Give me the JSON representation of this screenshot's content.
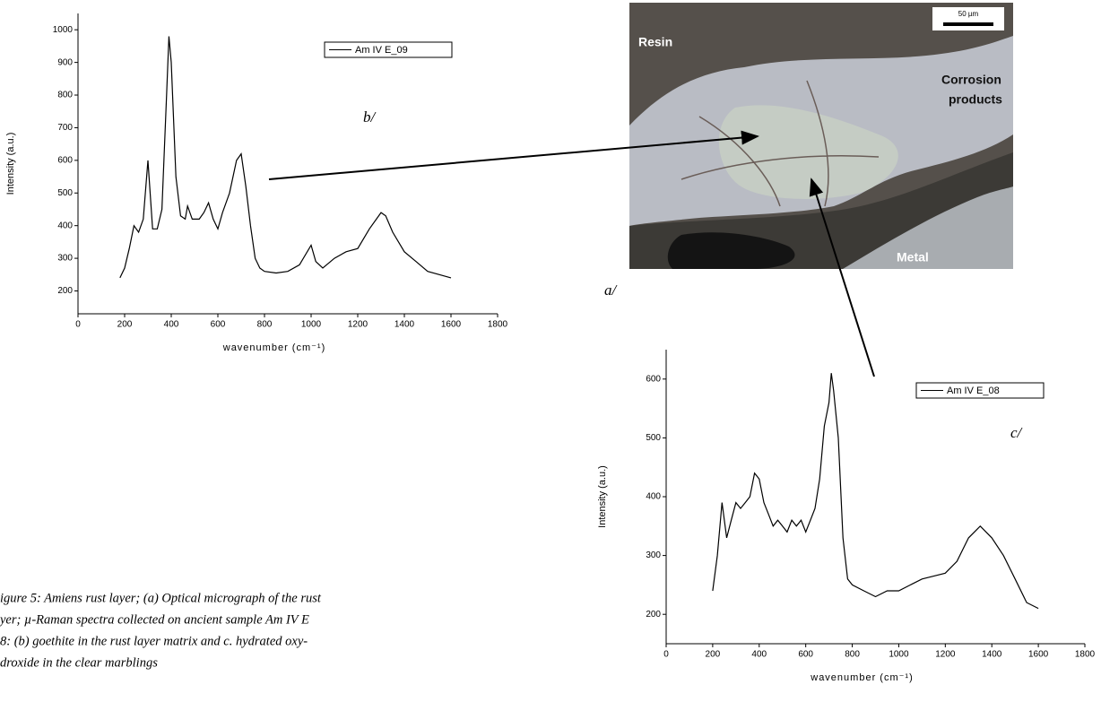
{
  "chart_data": [
    {
      "type": "line",
      "x_label": "wavenumber (cm⁻¹)",
      "y_label": "Intensity (a.u.)",
      "x": [
        180,
        200,
        220,
        240,
        260,
        280,
        300,
        320,
        340,
        360,
        380,
        390,
        400,
        420,
        440,
        460,
        470,
        490,
        520,
        540,
        560,
        580,
        600,
        620,
        650,
        680,
        700,
        720,
        740,
        760,
        780,
        800,
        850,
        900,
        950,
        1000,
        1020,
        1050,
        1100,
        1150,
        1200,
        1250,
        1300,
        1320,
        1350,
        1400,
        1450,
        1500,
        1550,
        1600
      ],
      "series": [
        {
          "name": "Am IV E_09",
          "color": "#000000",
          "values": [
            240,
            270,
            330,
            400,
            380,
            420,
            600,
            390,
            390,
            450,
            800,
            980,
            900,
            550,
            430,
            420,
            460,
            420,
            420,
            440,
            470,
            420,
            390,
            440,
            500,
            600,
            620,
            520,
            400,
            300,
            270,
            260,
            255,
            260,
            280,
            340,
            290,
            270,
            300,
            320,
            330,
            390,
            440,
            430,
            380,
            320,
            290,
            260,
            250,
            240
          ]
        }
      ],
      "xlim": [
        0,
        1800
      ],
      "xticks": [
        0,
        200,
        400,
        600,
        800,
        1000,
        1200,
        1400,
        1600,
        1800
      ],
      "ylim": [
        130,
        1050
      ],
      "yticks": [
        200,
        300,
        400,
        500,
        600,
        700,
        800,
        900,
        1000
      ]
    },
    {
      "type": "line",
      "x_label": "wavenumber (cm⁻¹)",
      "y_label": "Intensity (a.u.)",
      "x": [
        200,
        220,
        240,
        260,
        280,
        300,
        320,
        340,
        360,
        380,
        400,
        420,
        440,
        460,
        480,
        500,
        520,
        540,
        560,
        580,
        600,
        620,
        640,
        660,
        680,
        700,
        710,
        720,
        740,
        760,
        780,
        800,
        850,
        900,
        950,
        1000,
        1050,
        1100,
        1150,
        1200,
        1250,
        1300,
        1350,
        1400,
        1450,
        1500,
        1550,
        1600
      ],
      "series": [
        {
          "name": "Am IV E_08",
          "color": "#000000",
          "values": [
            240,
            300,
            390,
            330,
            360,
            390,
            380,
            390,
            400,
            440,
            430,
            390,
            370,
            350,
            360,
            350,
            340,
            360,
            350,
            360,
            340,
            360,
            380,
            430,
            520,
            560,
            610,
            580,
            500,
            330,
            260,
            250,
            240,
            230,
            240,
            240,
            250,
            260,
            265,
            270,
            290,
            330,
            350,
            330,
            300,
            260,
            220,
            210
          ]
        }
      ],
      "xlim": [
        0,
        1800
      ],
      "xticks": [
        0,
        200,
        400,
        600,
        800,
        1000,
        1200,
        1400,
        1600,
        1800
      ],
      "ylim": [
        150,
        650
      ],
      "yticks": [
        200,
        300,
        400,
        500,
        600
      ]
    }
  ],
  "figure": {
    "panel_labels": [
      "a/",
      "b/",
      "c/"
    ],
    "micrograph_labels": [
      "Resin",
      "Corrosion",
      "products",
      "Metal",
      "50 µm"
    ],
    "caption_lines": [
      "igure 5: Amiens rust layer; (a) Optical micrograph of the rust",
      "yer; µ-Raman spectra collected on ancient sample Am IV E",
      "8: (b) goethite in the rust layer matrix and c. hydrated oxy-",
      "droxide in the clear marblings"
    ]
  }
}
